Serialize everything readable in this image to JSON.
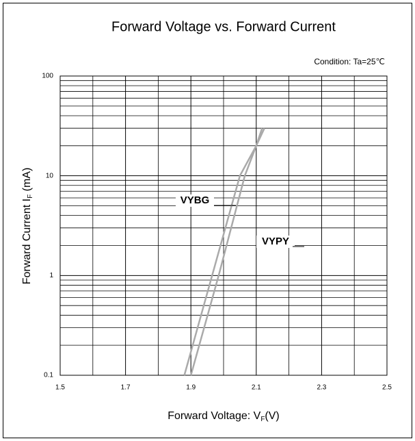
{
  "chart_data": {
    "type": "line",
    "title": "Forward Voltage vs. Forward Current",
    "annotation": "Condition: Ta=25℃",
    "xlabel": [
      "Forward Voltage:  V",
      "F",
      "(V)"
    ],
    "ylabel": [
      "Forward Current  I",
      "F",
      "  (mA)"
    ],
    "xlim": [
      1.5,
      2.5
    ],
    "xticks": [
      1.5,
      1.7,
      1.9,
      2.1,
      2.3,
      2.5
    ],
    "ylim": [
      0.1,
      100
    ],
    "yticks": [
      0.1,
      1,
      10,
      100
    ],
    "log_y": true,
    "grid": true,
    "series": [
      {
        "name": "VYBG",
        "color": "#aaaaaa",
        "x": [
          1.88,
          1.965,
          2.05,
          2.1,
          2.125
        ],
        "values": [
          0.1,
          1,
          10,
          20,
          30
        ]
      },
      {
        "name": "VYPY",
        "color": "#aaaaaa",
        "x": [
          1.9,
          1.985,
          2.065,
          2.1,
          2.118
        ],
        "values": [
          0.1,
          1,
          10,
          20,
          30
        ]
      }
    ]
  }
}
